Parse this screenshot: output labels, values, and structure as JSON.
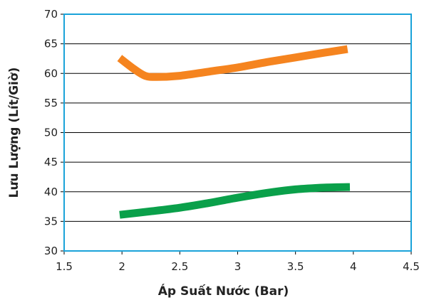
{
  "chart_data": {
    "type": "line",
    "xlabel": "Áp Suất Nước (Bar)",
    "ylabel": "Lưu Lượng (Lít/Giờ)",
    "xlim": [
      1.5,
      4.5
    ],
    "ylim": [
      30,
      70
    ],
    "x_ticks": [
      "1.5",
      "2",
      "2.5",
      "3",
      "3.5",
      "4",
      "4.5"
    ],
    "y_ticks": [
      "30",
      "35",
      "40",
      "45",
      "50",
      "55",
      "60",
      "65",
      "70"
    ],
    "grid": "horizontal",
    "legend": "none",
    "series": [
      {
        "color": "#f5841f",
        "x": [
          1.98,
          2.1,
          2.2,
          2.3,
          2.5,
          2.75,
          3.0,
          3.25,
          3.5,
          3.75,
          3.95
        ],
        "y": [
          62.6,
          60.8,
          59.6,
          59.4,
          59.6,
          60.3,
          61.0,
          61.9,
          62.7,
          63.5,
          64.1
        ]
      },
      {
        "color": "#0aa04a",
        "x": [
          1.98,
          2.25,
          2.5,
          2.75,
          3.0,
          3.25,
          3.5,
          3.75,
          3.97
        ],
        "y": [
          36.1,
          36.7,
          37.3,
          38.1,
          39.0,
          39.8,
          40.4,
          40.7,
          40.8
        ]
      }
    ],
    "colors": {
      "plot_border": "#1aa3d9",
      "grid": "#000000",
      "axis": "#000000"
    }
  }
}
